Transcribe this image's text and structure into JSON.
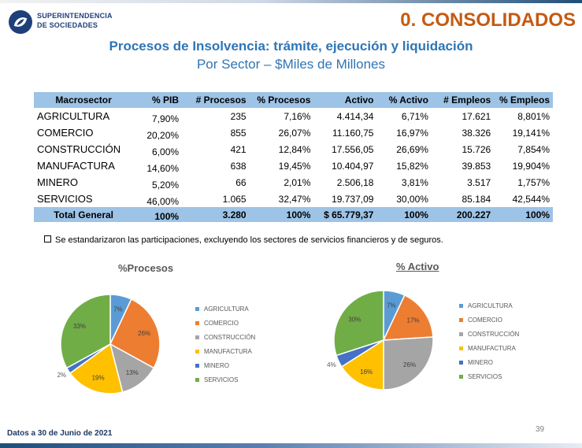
{
  "header": {
    "brand_line1": "SUPERINTENDENCIA",
    "brand_line2": "DE SOCIEDADES",
    "section_title": "0. CONSOLIDADOS",
    "title": "Procesos de Insolvencia: trámite, ejecución y liquidación",
    "subtitle": "Por Sector – $Miles de Millones"
  },
  "table": {
    "headers": [
      "Macrosector",
      "% PIB",
      "# Procesos",
      "% Procesos",
      "Activo",
      "% Activo",
      "# Empleos",
      "% Empleos"
    ],
    "rows": [
      [
        "AGRICULTURA",
        "7,90%",
        "235",
        "7,16%",
        "4.414,34",
        "6,71%",
        "17.621",
        "8,801%"
      ],
      [
        "COMERCIO",
        "20,20%",
        "855",
        "26,07%",
        "11.160,75",
        "16,97%",
        "38.326",
        "19,141%"
      ],
      [
        "CONSTRUCCIÓN",
        "6,00%",
        "421",
        "12,84%",
        "17.556,05",
        "26,69%",
        "15.726",
        "7,854%"
      ],
      [
        "MANUFACTURA",
        "14,60%",
        "638",
        "19,45%",
        "10.404,97",
        "15,82%",
        "39.853",
        "19,904%"
      ],
      [
        "MINERO",
        "5,20%",
        "66",
        "2,01%",
        "2.506,18",
        "3,81%",
        "3.517",
        "1,757%"
      ],
      [
        "SERVICIOS",
        "46,00%",
        "1.065",
        "32,47%",
        "19.737,09",
        "30,00%",
        "85.184",
        "42,544%"
      ]
    ],
    "total": [
      "Total General",
      "100%",
      "3.280",
      "100%",
      "$ 65.779,37",
      "100%",
      "200.227",
      "100%"
    ]
  },
  "note": "Se estandarizaron las participaciones, excluyendo los sectores de servicios financieros y de seguros.",
  "chart_data": [
    {
      "type": "pie",
      "title": "%Procesos",
      "categories": [
        "AGRICULTURA",
        "COMERCIO",
        "CONSTRUCCIÓN",
        "MANUFACTURA",
        "MINERO",
        "SERVICIOS"
      ],
      "values": [
        7,
        26,
        13,
        19,
        2,
        33
      ],
      "labels": [
        "7%",
        "26%",
        "13%",
        "19%",
        "2%",
        "33%"
      ],
      "colors": [
        "#5b9bd5",
        "#ed7d31",
        "#a5a5a5",
        "#ffc000",
        "#4472c4",
        "#70ad47"
      ],
      "legend_position": "right"
    },
    {
      "type": "pie",
      "title": "% Activo",
      "categories": [
        "AGRICULTURA",
        "COMERCIO",
        "CONSTRUCCIÓN",
        "MANUFACTURA",
        "MINERO",
        "SERVICIOS"
      ],
      "values": [
        7,
        17,
        26,
        16,
        4,
        30
      ],
      "labels": [
        "7%",
        "17%",
        "26%",
        "16%",
        "4%",
        "30%"
      ],
      "colors": [
        "#5b9bd5",
        "#ed7d31",
        "#a5a5a5",
        "#ffc000",
        "#4472c4",
        "#70ad47"
      ],
      "legend_position": "right"
    }
  ],
  "footer": "Datos a 30 de Junio de 2021",
  "page_number": "39"
}
